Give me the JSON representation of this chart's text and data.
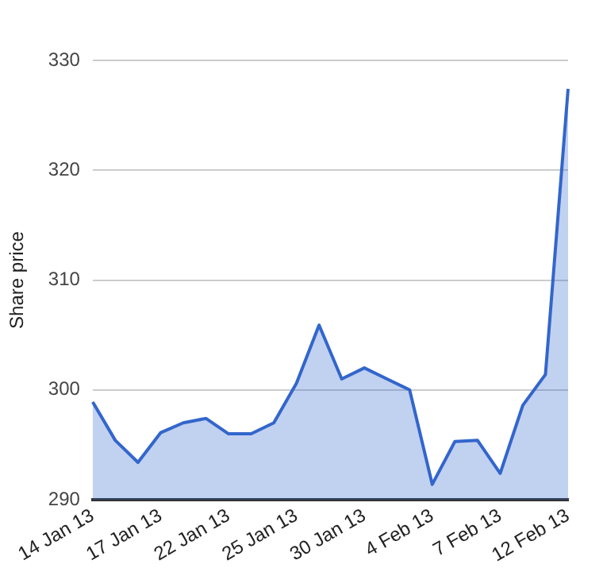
{
  "chart_data": {
    "type": "area",
    "ylabel": "Share price",
    "categories": [
      "14 Jan 13",
      null,
      null,
      "17 Jan 13",
      null,
      null,
      "22 Jan 13",
      null,
      null,
      "25 Jan 13",
      null,
      null,
      "30 Jan 13",
      null,
      null,
      "4 Feb 13",
      null,
      null,
      "7 Feb 13",
      null,
      null,
      "12 Feb 13"
    ],
    "series": [
      {
        "color": "#3366cc",
        "values": [
          298.9,
          295.4,
          293.4,
          296.1,
          297.0,
          297.4,
          296.0,
          296.0,
          297.0,
          300.6,
          305.9,
          301.0,
          302.0,
          301.0,
          300.0,
          291.4,
          295.3,
          295.4,
          292.4,
          298.6,
          301.4,
          327.4
        ]
      }
    ],
    "ylim": [
      290,
      330
    ],
    "yticks": [
      290,
      300,
      310,
      320,
      330
    ],
    "grid": "y",
    "legend": false,
    "marker": "none"
  }
}
